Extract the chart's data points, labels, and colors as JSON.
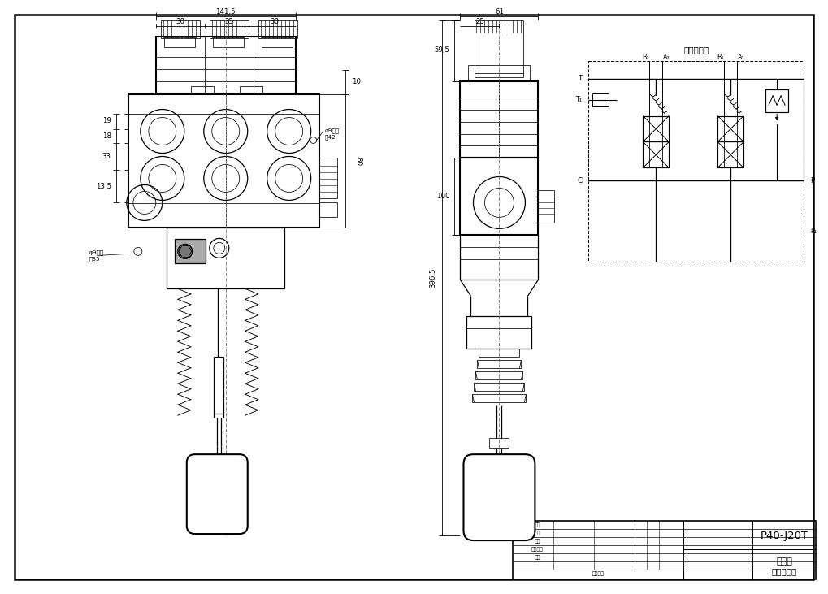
{
  "paper_color": "#ffffff",
  "line_color": "#000000",
  "title": "P40-J20T",
  "subtitle1": "多路阀",
  "subtitle2": "外形尺寸图",
  "hydraulic_title": "液压原理图",
  "dim_141_5": "141,5",
  "dim_30a": "30",
  "dim_35": "35",
  "dim_30b": "30",
  "dim_25": "25",
  "dim_61": "61",
  "dim_59_5": "59,5",
  "dim_100": "100",
  "dim_396_5": "396,5",
  "dim_19": "19",
  "dim_18": "18",
  "dim_33": "33",
  "dim_13_5": "13,5",
  "dim_80": "80",
  "dim_10": "10",
  "hole1_text": "φ9通孔\n高42",
  "hole2_text": "φ9通孔\n高35",
  "label_T": "T",
  "label_T1": "T₁",
  "label_C": "C",
  "label_P": "P",
  "label_P1": "P₁",
  "label_B2": "B₂",
  "label_A2": "A₂",
  "label_B1": "B₁",
  "label_A1": "A₁"
}
